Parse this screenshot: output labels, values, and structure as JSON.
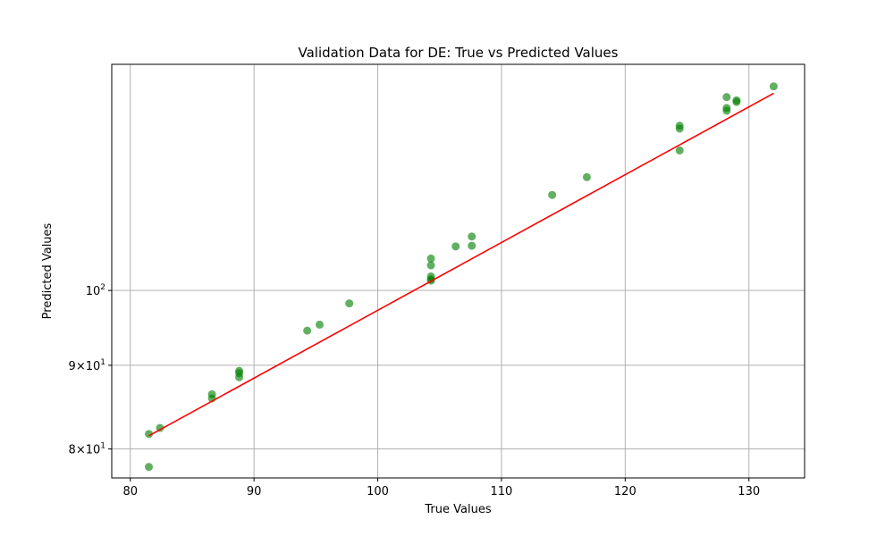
{
  "chart_data": {
    "type": "scatter",
    "title": "Validation Data for DE: True vs Predicted Values",
    "xlabel": "True Values",
    "ylabel": "Predicted Values",
    "xlim": [
      78.5,
      134.5
    ],
    "ylim": [
      76.8,
      137.5
    ],
    "yscale": "log",
    "grid": true,
    "x_ticks": [
      {
        "value": 80,
        "label": "80"
      },
      {
        "value": 90,
        "label": "90"
      },
      {
        "value": 100,
        "label": "100"
      },
      {
        "value": 110,
        "label": "110"
      },
      {
        "value": 120,
        "label": "120"
      },
      {
        "value": 130,
        "label": "130"
      }
    ],
    "y_ticks": [
      {
        "value": 80,
        "base": "8×10",
        "exp": "1"
      },
      {
        "value": 90,
        "base": "9×10",
        "exp": "1"
      },
      {
        "value": 100,
        "base": "10",
        "exp": "2"
      }
    ],
    "colors": {
      "points": "#008000",
      "line": "#ff0000",
      "grid": "#b0b0b0"
    },
    "series": [
      {
        "marker": "scatter",
        "points": [
          {
            "x": 81.5,
            "y": 81.7
          },
          {
            "x": 81.5,
            "y": 78.0
          },
          {
            "x": 82.4,
            "y": 82.4
          },
          {
            "x": 86.6,
            "y": 86.4
          },
          {
            "x": 86.6,
            "y": 85.9
          },
          {
            "x": 88.8,
            "y": 89.3
          },
          {
            "x": 88.8,
            "y": 89.0
          },
          {
            "x": 88.8,
            "y": 88.5
          },
          {
            "x": 94.3,
            "y": 94.5
          },
          {
            "x": 95.3,
            "y": 95.3
          },
          {
            "x": 97.7,
            "y": 98.2
          },
          {
            "x": 104.3,
            "y": 104.6
          },
          {
            "x": 104.3,
            "y": 103.6
          },
          {
            "x": 104.3,
            "y": 102.0
          },
          {
            "x": 104.3,
            "y": 101.6
          },
          {
            "x": 104.3,
            "y": 101.4
          },
          {
            "x": 106.3,
            "y": 106.4
          },
          {
            "x": 107.6,
            "y": 107.9
          },
          {
            "x": 107.6,
            "y": 106.5
          },
          {
            "x": 114.1,
            "y": 114.4
          },
          {
            "x": 116.9,
            "y": 117.3
          },
          {
            "x": 124.4,
            "y": 126.1
          },
          {
            "x": 124.4,
            "y": 125.6
          },
          {
            "x": 124.4,
            "y": 121.8
          },
          {
            "x": 128.2,
            "y": 131.3
          },
          {
            "x": 128.2,
            "y": 129.3
          },
          {
            "x": 128.2,
            "y": 128.8
          },
          {
            "x": 129.0,
            "y": 130.7
          },
          {
            "x": 129.0,
            "y": 130.4
          },
          {
            "x": 132.0,
            "y": 133.3
          }
        ]
      },
      {
        "marker": "line",
        "points": [
          {
            "x": 81.5,
            "y": 81.5
          },
          {
            "x": 132.0,
            "y": 132.0
          }
        ]
      }
    ]
  }
}
